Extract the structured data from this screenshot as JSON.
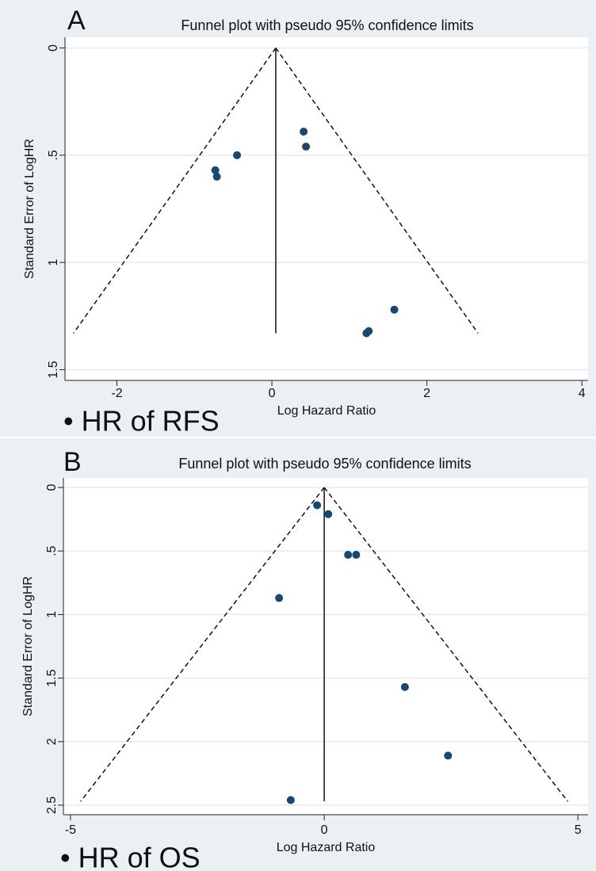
{
  "chart_data": [
    {
      "type": "scatter",
      "panel_label": "A",
      "title": "Funnel plot with pseudo 95% confidence limits",
      "xlabel": "Log Hazard Ratio",
      "ylabel": "Standard Error of LogHR",
      "annotation": "• HR of RFS",
      "x": [
        0.41,
        0.44,
        -0.45,
        -0.73,
        -0.71,
        1.58,
        1.25,
        1.22
      ],
      "values": [
        0.39,
        0.46,
        0.5,
        0.57,
        0.6,
        1.22,
        1.32,
        1.33
      ],
      "color": "#1a476f",
      "xlim": [
        -2.67,
        4.08
      ],
      "ylim": [
        -0.05,
        1.55
      ],
      "y_inverted": true,
      "xticks": [
        -2,
        0,
        2,
        4
      ],
      "yticks": [
        0,
        {
          "value": 0.5,
          "label": ".5"
        },
        1,
        1.5
      ],
      "grid": true,
      "funnel": {
        "pooled": 0.05,
        "se_max": 1.33,
        "lower_at_max": -2.56,
        "upper_at_max": 2.66
      }
    },
    {
      "type": "scatter",
      "panel_label": "B",
      "title": "Funnel plot with pseudo 95% confidence limits",
      "xlabel": "Log Hazard Ratio",
      "ylabel": "Standard Error of LogHR",
      "annotation": "• HR of OS",
      "x": [
        -0.14,
        0.08,
        0.47,
        0.63,
        -0.89,
        1.59,
        2.44,
        -0.66
      ],
      "values": [
        0.14,
        0.21,
        0.53,
        0.53,
        0.87,
        1.57,
        2.11,
        2.46
      ],
      "color": "#1a476f",
      "xlim": [
        -5.14,
        5.2
      ],
      "ylim": [
        -0.075,
        2.575
      ],
      "y_inverted": true,
      "xticks": [
        -5,
        0,
        5
      ],
      "yticks": [
        0,
        {
          "value": 0.5,
          "label": ".5"
        },
        1,
        1.5,
        2,
        2.5
      ],
      "grid": true,
      "funnel": {
        "pooled": 0,
        "se_max": 2.47,
        "lower_at_max": -4.8,
        "upper_at_max": 4.8
      }
    }
  ]
}
